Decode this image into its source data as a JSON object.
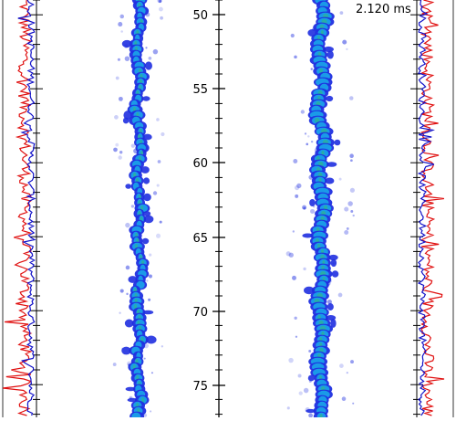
{
  "timestamp": "2.120 ms",
  "axis": {
    "ticks": [
      "50",
      "55",
      "60",
      "65",
      "70",
      "75"
    ]
  },
  "colors": {
    "trace_a": "#e01010",
    "trace_b": "#1010c8",
    "jet_outer": "#1f2fe0",
    "jet_mid": "#1aa0e8",
    "jet_core": "#2ab0a0",
    "axis": "#000000"
  }
}
